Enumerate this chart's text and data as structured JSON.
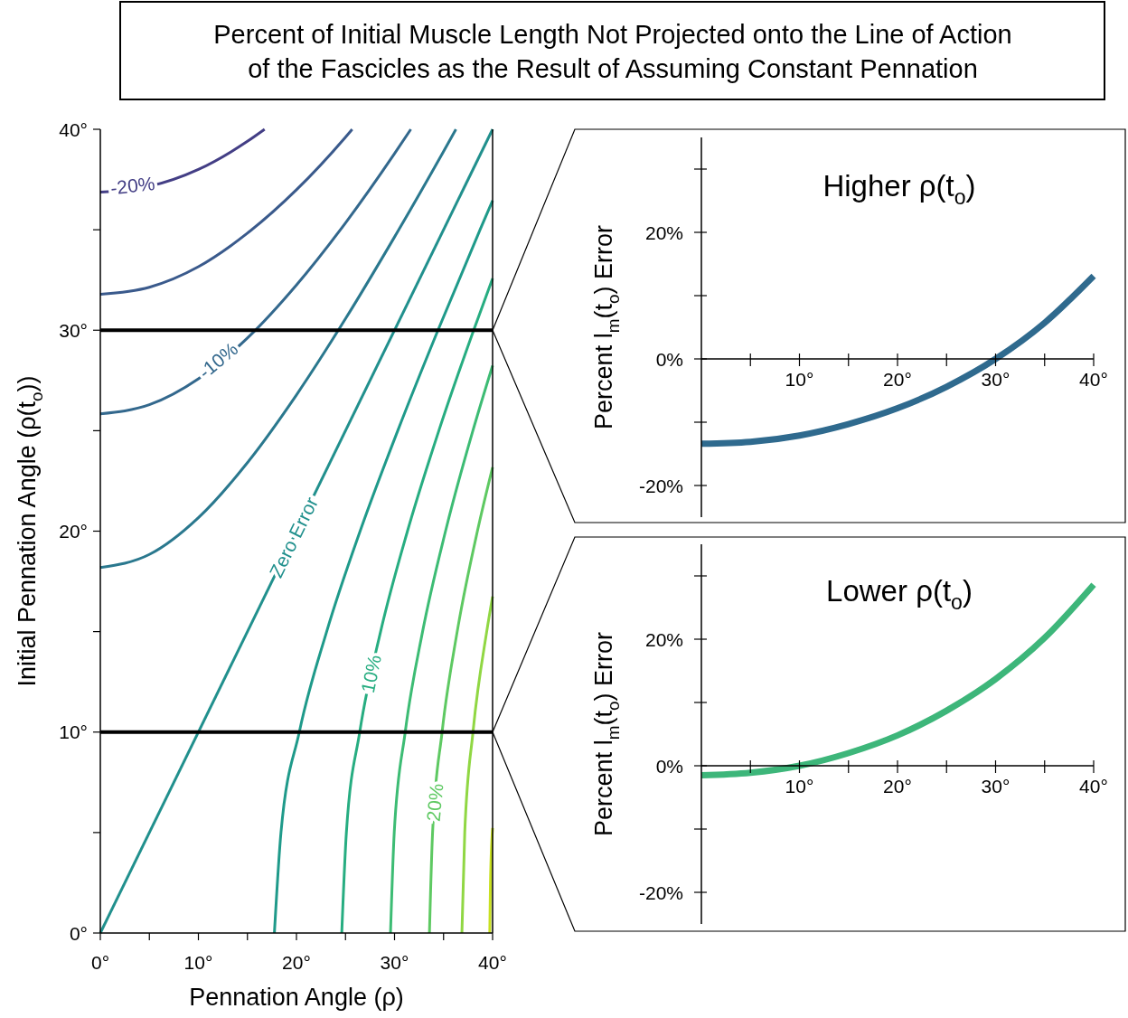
{
  "chart_data": [
    {
      "type": "line",
      "title": "Percent of Initial Muscle Length Not Projected onto the Line of Action of the Fascicles as the Result of Assuming Constant Pennation",
      "xlabel": "Pennation Angle (ρ)",
      "ylabel": "Initial  Pennation Angle (ρ(t$_{o}$))",
      "xlim": [
        0,
        40
      ],
      "ylim": [
        0,
        40
      ],
      "xticks": [
        {
          "value": 0,
          "label": "0°"
        },
        {
          "value": 5,
          "label": null
        },
        {
          "value": 10,
          "label": "10°"
        },
        {
          "value": 15,
          "label": null
        },
        {
          "value": 20,
          "label": "20°"
        },
        {
          "value": 25,
          "label": null
        },
        {
          "value": 30,
          "label": "30°"
        },
        {
          "value": 35,
          "label": null
        },
        {
          "value": 40,
          "label": "40°"
        }
      ],
      "yticks": [
        {
          "value": 0,
          "label": "0°"
        },
        {
          "value": 5,
          "label": null
        },
        {
          "value": 10,
          "label": "10°"
        },
        {
          "value": 15,
          "label": null
        },
        {
          "value": 20,
          "label": "20°"
        },
        {
          "value": 25,
          "label": null
        },
        {
          "value": 30,
          "label": "30°"
        },
        {
          "value": 35,
          "label": null
        },
        {
          "value": 40,
          "label": "40°"
        }
      ],
      "series": [
        {
          "color": "#433e85",
          "x": [
            0,
            5,
            10,
            15,
            16.75
          ],
          "values": [
            36.87,
            37.16,
            38.0,
            39.4,
            40
          ]
        },
        {
          "color": "#3a5a8c",
          "x": [
            0,
            5,
            10,
            15,
            20,
            25,
            25.68
          ],
          "values": [
            31.79,
            32.14,
            33.16,
            34.83,
            36.99,
            39.61,
            40
          ]
        },
        {
          "color": "#33688d",
          "x": [
            0,
            5,
            10,
            15,
            20,
            25,
            30,
            31.66
          ],
          "values": [
            25.84,
            26.29,
            27.58,
            29.61,
            32.25,
            35.34,
            38.79,
            40
          ]
        },
        {
          "color": "#2a788e",
          "x": [
            0,
            5,
            10,
            15,
            20,
            25,
            30,
            35,
            36.26
          ],
          "values": [
            18.19,
            18.84,
            20.67,
            23.41,
            26.78,
            30.57,
            34.64,
            38.9,
            40
          ]
        },
        {
          "color": "#21908d",
          "x": [
            0,
            40
          ],
          "values": [
            0,
            40
          ]
        },
        {
          "color": "#1f9a8a",
          "x": [
            17.75,
            18.42,
            20.29,
            23.08,
            26.49,
            30.33,
            34.43,
            38.72,
            40
          ],
          "values": [
            0,
            5,
            10,
            15,
            20,
            25,
            30,
            35,
            36.45
          ]
        },
        {
          "color": "#27ad81",
          "x": [
            24.62,
            25.09,
            26.45,
            28.58,
            31.32,
            34.52,
            38.07,
            40
          ],
          "values": [
            0,
            5,
            10,
            15,
            20,
            25,
            30,
            32.58
          ]
        },
        {
          "color": "#3dbc74",
          "x": [
            29.59,
            29.97,
            31.09,
            32.86,
            35.2,
            37.99,
            40
          ],
          "values": [
            0,
            5,
            10,
            15,
            20,
            25,
            28.24
          ]
        },
        {
          "color": "#5ec962",
          "x": [
            33.56,
            33.88,
            34.85,
            36.39,
            38.45,
            40
          ],
          "values": [
            0,
            5,
            10,
            15,
            20,
            23.18
          ]
        },
        {
          "color": "#90d743",
          "x": [
            36.87,
            37.16,
            38.0,
            39.4,
            40
          ],
          "values": [
            0,
            5,
            10,
            15,
            16.75
          ]
        },
        {
          "color": "#c8e020",
          "x": [
            39.71,
            39.78,
            40
          ],
          "values": [
            0,
            2.5,
            5.22
          ]
        }
      ],
      "ref_lines": [
        {
          "axis": "y",
          "value": 30,
          "color": "#000000"
        },
        {
          "axis": "y",
          "value": 10,
          "color": "#000000"
        }
      ],
      "annotations": [
        {
          "text": "-20%",
          "x": 3.3,
          "y": 37.2
        },
        {
          "text": "-10%",
          "x": 12,
          "y": 28.5
        },
        {
          "text": "Zero Error",
          "x": 19.7,
          "y": 19.7
        },
        {
          "text": "10%",
          "x": 27.6,
          "y": 12.9
        },
        {
          "text": "20%",
          "x": 34.1,
          "y": 6.5
        }
      ]
    },
    {
      "type": "line",
      "title": "Higher ρ(t$_{o}$)",
      "ylabel": "Percent l$_{m}$(t$_{o}$) Error",
      "xlim": [
        0,
        40
      ],
      "ylim": [
        -25,
        35
      ],
      "xticks": [
        {
          "value": 5,
          "label": null
        },
        {
          "value": 10,
          "label": "10°"
        },
        {
          "value": 15,
          "label": null
        },
        {
          "value": 20,
          "label": "20°"
        },
        {
          "value": 25,
          "label": null
        },
        {
          "value": 30,
          "label": "30°"
        },
        {
          "value": 35,
          "label": null
        },
        {
          "value": 40,
          "label": "40°"
        }
      ],
      "yticks": [
        {
          "value": -20,
          "label": "-20%"
        },
        {
          "value": -10,
          "label": null
        },
        {
          "value": 0,
          "label": "0%"
        },
        {
          "value": 10,
          "label": null
        },
        {
          "value": 20,
          "label": "20%"
        },
        {
          "value": 30,
          "label": null
        }
      ],
      "x": [
        0,
        5,
        10,
        15,
        20,
        25,
        30,
        35,
        40
      ],
      "series": [
        {
          "color": "#2f6a8e",
          "values": [
            -13.4,
            -13.1,
            -12.1,
            -10.3,
            -7.8,
            -4.4,
            0,
            5.7,
            13.1
          ]
        }
      ]
    },
    {
      "type": "line",
      "title": "Lower ρ(t$_{o}$)",
      "ylabel": "Percent l$_{m}$(t$_{o}$) Error",
      "xlim": [
        0,
        40
      ],
      "ylim": [
        -25,
        35
      ],
      "xticks": [
        {
          "value": 5,
          "label": null
        },
        {
          "value": 10,
          "label": "10°"
        },
        {
          "value": 15,
          "label": null
        },
        {
          "value": 20,
          "label": "20°"
        },
        {
          "value": 25,
          "label": null
        },
        {
          "value": 30,
          "label": "30°"
        },
        {
          "value": 35,
          "label": null
        },
        {
          "value": 40,
          "label": "40°"
        }
      ],
      "yticks": [
        {
          "value": -20,
          "label": "-20%"
        },
        {
          "value": -10,
          "label": null
        },
        {
          "value": 0,
          "label": "0%"
        },
        {
          "value": 10,
          "label": null
        },
        {
          "value": 20,
          "label": "20%"
        },
        {
          "value": 30,
          "label": null
        }
      ],
      "x": [
        0,
        5,
        10,
        15,
        20,
        25,
        30,
        35,
        40
      ],
      "series": [
        {
          "color": "#3db67a",
          "values": [
            -1.5,
            -1.1,
            0,
            2.0,
            4.8,
            8.7,
            13.7,
            20.2,
            28.6
          ]
        }
      ]
    }
  ]
}
